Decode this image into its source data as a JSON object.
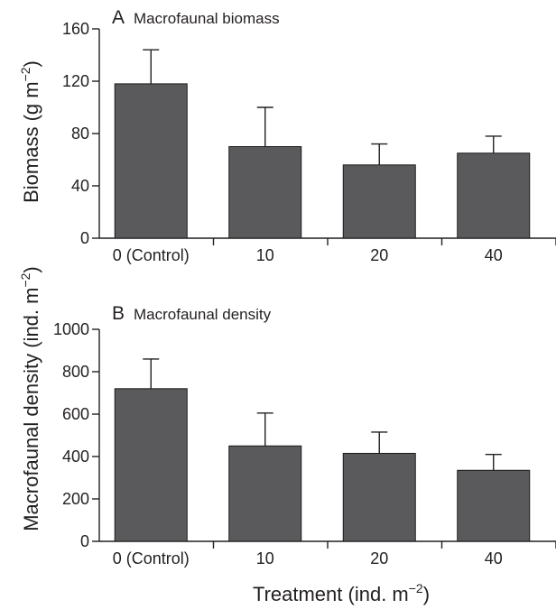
{
  "colors": {
    "bar": "#5a5a5c",
    "bar_outline": "#1a1a1a",
    "axis": "#231f20",
    "background": "#ffffff"
  },
  "xlabel": "Treatment (ind. m",
  "xlabel_exp": "−2",
  "xlabel_close": ")",
  "chart_data": [
    {
      "type": "bar",
      "panel_letter": "A",
      "title": "Macrofaunal biomass",
      "categories": [
        "0 (Control)",
        "10",
        "20",
        "40"
      ],
      "values": [
        118,
        70,
        56,
        65
      ],
      "errors": [
        26,
        30,
        16,
        13
      ],
      "ylabel": "Biomass (g m",
      "ylabel_exp": "−2",
      "ylabel_close": ")",
      "ylim": [
        0,
        160
      ],
      "yticks": [
        "0",
        "40",
        "80",
        "120",
        "160"
      ],
      "ytick_values": [
        0,
        40,
        80,
        120,
        160
      ],
      "grid": false,
      "legend": "none"
    },
    {
      "type": "bar",
      "panel_letter": "B",
      "title": "Macrofaunal density",
      "categories": [
        "0 (Control)",
        "10",
        "20",
        "40"
      ],
      "values": [
        720,
        450,
        415,
        335
      ],
      "errors": [
        140,
        155,
        100,
        75
      ],
      "ylabel": "Macrofaunal density (ind. m",
      "ylabel_exp": "−2",
      "ylabel_close": ")",
      "ylim": [
        0,
        1000
      ],
      "yticks": [
        "0",
        "200",
        "400",
        "600",
        "800",
        "1000"
      ],
      "ytick_values": [
        0,
        200,
        400,
        600,
        800,
        1000
      ],
      "grid": false,
      "legend": "none"
    }
  ]
}
